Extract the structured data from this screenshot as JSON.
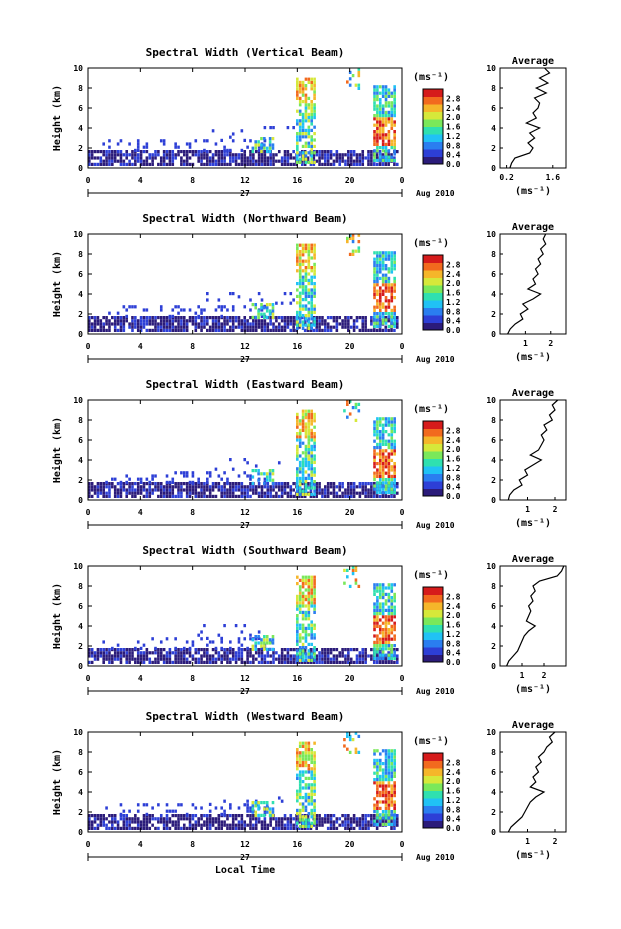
{
  "chart_data": [
    {
      "type": "heatmap",
      "title": "Spectral Width (Vertical Beam)",
      "ylabel": "Height (km)",
      "y_ticks": [
        "0",
        "2",
        "4",
        "6",
        "8",
        "10"
      ],
      "x_ticks": [
        "0",
        "4",
        "8",
        "12",
        "16",
        "20",
        "0"
      ],
      "day_label": "27",
      "date_label": "Aug 2010",
      "colorbar": {
        "unit": "(ms⁻¹)",
        "ticks": [
          "0.0",
          "0.4",
          "0.8",
          "1.2",
          "1.6",
          "2.0",
          "2.4",
          "2.8"
        ],
        "range": [
          0,
          3.2
        ]
      },
      "profile": {
        "title": "Average",
        "xlabel": "(ms⁻¹)",
        "x_ticks": [
          "0.2",
          "1.6"
        ],
        "xlim": [
          0,
          2.0
        ],
        "height": [
          0,
          0.5,
          1,
          1.5,
          2,
          2.5,
          3,
          3.5,
          4,
          4.5,
          5,
          5.5,
          6,
          6.5,
          7,
          7.5,
          8,
          8.5,
          9,
          9.5,
          10
        ],
        "width": [
          0.3,
          0.35,
          0.45,
          0.9,
          1.0,
          0.85,
          1.05,
          0.9,
          1.2,
          0.8,
          1.1,
          1.0,
          1.15,
          1.2,
          1.05,
          1.4,
          1.1,
          1.45,
          1.2,
          1.5,
          1.35
        ]
      }
    },
    {
      "type": "heatmap",
      "title": "Spectral Width (Northward Beam)",
      "ylabel": "Height (km)",
      "y_ticks": [
        "0",
        "2",
        "4",
        "6",
        "8",
        "10"
      ],
      "x_ticks": [
        "0",
        "4",
        "8",
        "12",
        "16",
        "20",
        "0"
      ],
      "day_label": "27",
      "date_label": "Aug 2010",
      "colorbar": {
        "unit": "(ms⁻¹)",
        "ticks": [
          "0.0",
          "0.4",
          "0.8",
          "1.2",
          "1.6",
          "2.0",
          "2.4",
          "2.8"
        ],
        "range": [
          0,
          3.2
        ]
      },
      "profile": {
        "title": "Average",
        "xlabel": "(ms⁻¹)",
        "x_ticks": [
          "1",
          "2"
        ],
        "xlim": [
          0,
          2.6
        ],
        "height": [
          0,
          0.5,
          1,
          1.5,
          2,
          2.5,
          3,
          3.5,
          4,
          4.5,
          5,
          5.5,
          6,
          6.5,
          7,
          7.5,
          8,
          8.5,
          9,
          9.5,
          10
        ],
        "width": [
          0.3,
          0.4,
          0.6,
          0.9,
          0.8,
          1.1,
          0.9,
          1.3,
          1.6,
          1.1,
          1.4,
          1.3,
          1.5,
          1.4,
          1.6,
          1.5,
          1.7,
          1.6,
          1.8,
          1.7,
          1.8
        ]
      }
    },
    {
      "type": "heatmap",
      "title": "Spectral Width (Eastward Beam)",
      "ylabel": "Height (km)",
      "y_ticks": [
        "0",
        "2",
        "4",
        "6",
        "8",
        "10"
      ],
      "x_ticks": [
        "0",
        "4",
        "8",
        "12",
        "16",
        "20",
        "0"
      ],
      "day_label": "27",
      "date_label": "Aug 2010",
      "colorbar": {
        "unit": "(ms⁻¹)",
        "ticks": [
          "0.0",
          "0.4",
          "0.8",
          "1.2",
          "1.6",
          "2.0",
          "2.4",
          "2.8"
        ],
        "range": [
          0,
          3.2
        ]
      },
      "profile": {
        "title": "Average",
        "xlabel": "(ms⁻¹)",
        "x_ticks": [
          "1",
          "2"
        ],
        "xlim": [
          0,
          2.4
        ],
        "height": [
          0,
          0.5,
          1,
          1.5,
          2,
          2.5,
          3,
          3.5,
          4,
          4.5,
          5,
          5.5,
          6,
          6.5,
          7,
          7.5,
          8,
          8.5,
          9,
          9.5,
          10
        ],
        "width": [
          0.3,
          0.35,
          0.5,
          0.8,
          0.7,
          1.0,
          0.9,
          1.2,
          1.5,
          1.1,
          1.4,
          1.5,
          1.6,
          1.5,
          1.7,
          1.6,
          1.9,
          1.8,
          2.0,
          1.9,
          2.1
        ]
      }
    },
    {
      "type": "heatmap",
      "title": "Spectral Width (Southward Beam)",
      "ylabel": "Height (km)",
      "y_ticks": [
        "0",
        "2",
        "4",
        "6",
        "8",
        "10"
      ],
      "x_ticks": [
        "0",
        "4",
        "8",
        "12",
        "16",
        "20",
        "0"
      ],
      "day_label": "27",
      "date_label": "Aug 2010",
      "colorbar": {
        "unit": "(ms⁻¹)",
        "ticks": [
          "0.0",
          "0.4",
          "0.8",
          "1.2",
          "1.6",
          "2.0",
          "2.4",
          "2.8"
        ],
        "range": [
          0,
          3.2
        ]
      },
      "profile": {
        "title": "Average",
        "xlabel": "(ms⁻¹)",
        "x_ticks": [
          "1",
          "2"
        ],
        "xlim": [
          0,
          3.0
        ],
        "height": [
          0,
          0.5,
          1,
          1.5,
          2,
          2.5,
          3,
          3.5,
          4,
          4.5,
          5,
          5.5,
          6,
          6.5,
          7,
          7.5,
          8,
          8.5,
          9,
          9.5,
          10
        ],
        "width": [
          0.3,
          0.4,
          0.6,
          0.8,
          0.9,
          1.0,
          1.1,
          1.3,
          1.6,
          1.2,
          1.3,
          1.4,
          1.3,
          1.5,
          1.4,
          1.6,
          1.5,
          1.8,
          2.6,
          2.8,
          2.9
        ]
      }
    },
    {
      "type": "heatmap",
      "title": "Spectral Width (Westward Beam)",
      "ylabel": "Height (km)",
      "y_ticks": [
        "0",
        "2",
        "4",
        "6",
        "8",
        "10"
      ],
      "x_ticks": [
        "0",
        "4",
        "8",
        "12",
        "16",
        "20",
        "0"
      ],
      "day_label": "27",
      "date_label": "Aug 2010",
      "xlabel": "Local Time",
      "colorbar": {
        "unit": "(ms⁻¹)",
        "ticks": [
          "0.0",
          "0.4",
          "0.8",
          "1.2",
          "1.6",
          "2.0",
          "2.4",
          "2.8"
        ],
        "range": [
          0,
          3.2
        ]
      },
      "profile": {
        "title": "Average",
        "xlabel": "(ms⁻¹)",
        "x_ticks": [
          "1",
          "2"
        ],
        "xlim": [
          0,
          2.4
        ],
        "height": [
          0,
          0.5,
          1,
          1.5,
          2,
          2.5,
          3,
          3.5,
          4,
          4.5,
          5,
          5.5,
          6,
          6.5,
          7,
          7.5,
          8,
          8.5,
          9,
          9.5,
          10
        ],
        "width": [
          0.3,
          0.4,
          0.6,
          0.8,
          0.9,
          1.0,
          1.1,
          1.3,
          1.6,
          1.1,
          1.3,
          1.2,
          1.4,
          1.3,
          1.5,
          1.4,
          1.6,
          1.7,
          1.9,
          1.8,
          2.0
        ]
      }
    }
  ],
  "colors": {
    "scale": [
      "#2b1b7a",
      "#2d3fd6",
      "#2a7ef0",
      "#20c2f5",
      "#2fe0b0",
      "#7ae85a",
      "#d6e83a",
      "#f5b62a",
      "#f26a1e",
      "#d61b1b"
    ]
  }
}
